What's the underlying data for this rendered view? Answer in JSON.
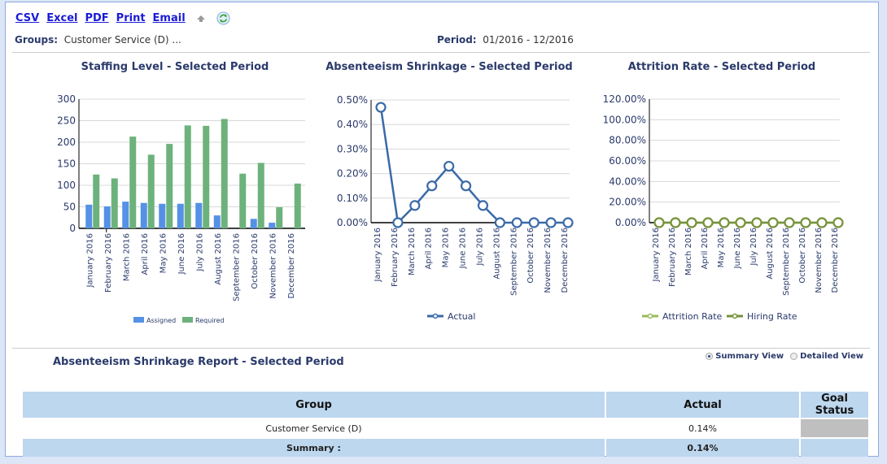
{
  "toolbar": {
    "csv": "CSV",
    "excel": "Excel",
    "pdf": "PDF",
    "print": "Print",
    "email": "Email",
    "icons": [
      "arrow-up-icon",
      "refresh-icon"
    ]
  },
  "filters": {
    "groups_label": "Groups:",
    "groups_value": "Customer Service (D) ...",
    "period_label": "Period:",
    "period_value": "01/2016 - 12/2016"
  },
  "chart_data": [
    {
      "type": "bar",
      "title": "Staffing Level - Selected Period",
      "categories": [
        "January 2016",
        "February 2016",
        "March 2016",
        "April 2016",
        "May 2016",
        "June 2016",
        "July 2016",
        "August 2016",
        "September 2016",
        "October 2016",
        "November 2016",
        "December 2016"
      ],
      "series": [
        {
          "name": "Assigned",
          "color": "#5591e5",
          "values": [
            55,
            51,
            62,
            59,
            57,
            57,
            59,
            30,
            0,
            22,
            13,
            0
          ]
        },
        {
          "name": "Required",
          "color": "#6db27c",
          "values": [
            125,
            116,
            213,
            171,
            196,
            239,
            238,
            254,
            127,
            152,
            49,
            104
          ]
        }
      ],
      "yticks": [
        0,
        50,
        100,
        150,
        200,
        250,
        300
      ],
      "ylim": [
        0,
        300
      ],
      "grid": true,
      "legend": "bottom"
    },
    {
      "type": "line",
      "title": "Absenteeism Shrinkage - Selected Period",
      "categories": [
        "January 2016",
        "February 2016",
        "March 2016",
        "April 2016",
        "May 2016",
        "June 2016",
        "July 2016",
        "August 2016",
        "September 2016",
        "October 2016",
        "November 2016",
        "December 2016"
      ],
      "series": [
        {
          "name": "Actual",
          "color": "#3a6aa8",
          "values": [
            0.47,
            0.0,
            0.07,
            0.15,
            0.23,
            0.15,
            0.07,
            0.0,
            0.0,
            0.0,
            0.0,
            0.0
          ]
        }
      ],
      "yticks": [
        "0.00%",
        "0.10%",
        "0.20%",
        "0.30%",
        "0.40%",
        "0.50%"
      ],
      "ylim": [
        0,
        0.5
      ],
      "yunit": "%",
      "grid": true,
      "legend": "bottom"
    },
    {
      "type": "line",
      "title": "Attrition Rate - Selected Period",
      "categories": [
        "January 2016",
        "February 2016",
        "March 2016",
        "April 2016",
        "May 2016",
        "June 2016",
        "July 2016",
        "August 2016",
        "September 2016",
        "October 2016",
        "November 2016",
        "December 2016"
      ],
      "series": [
        {
          "name": "Attrition Rate",
          "color": "#9bbb59",
          "values": [
            0,
            0,
            0,
            0,
            0,
            0,
            0,
            0,
            0,
            0,
            0,
            0
          ]
        },
        {
          "name": "Hiring Rate",
          "color": "#76923c",
          "values": [
            0,
            0,
            0,
            0,
            0,
            0,
            0,
            0,
            0,
            0,
            0,
            0
          ]
        }
      ],
      "yticks": [
        "0.00%",
        "20.00%",
        "40.00%",
        "60.00%",
        "80.00%",
        "100.00%",
        "120.00%"
      ],
      "ylim": [
        0,
        120
      ],
      "yunit": "%",
      "grid": true,
      "legend": "bottom"
    }
  ],
  "report": {
    "title": "Absenteeism Shrinkage Report - Selected Period",
    "views": {
      "summary": "Summary View",
      "detailed": "Detailed View",
      "selected": "summary"
    },
    "columns": [
      "Group",
      "Actual",
      "Goal Status"
    ],
    "rows": [
      {
        "group": "Customer Service (D)",
        "actual": "0.14%",
        "goal_status_color": "#bfbfbf"
      }
    ],
    "summary": {
      "label": "Summary :",
      "actual": "0.14%"
    }
  }
}
